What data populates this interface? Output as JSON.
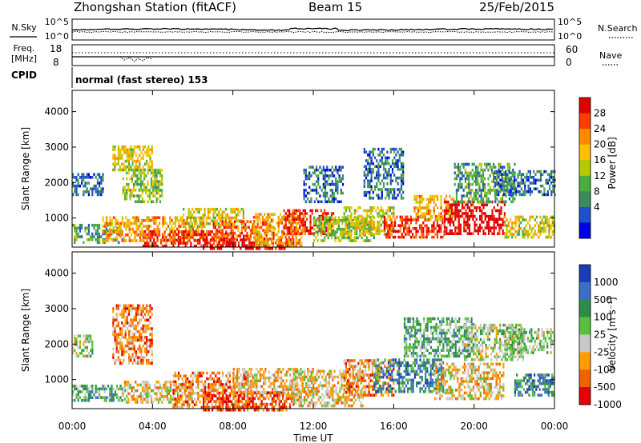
{
  "header": {
    "station": "Zhongshan Station (fitACF)",
    "beam": "Beam 15",
    "date": "25/Feb/2015"
  },
  "noise_panel": {
    "left_label": "N.Sky",
    "left_ticks": [
      "10^5",
      "10^0"
    ],
    "right_ticks": [
      "10^5",
      "10^0"
    ],
    "right_label": "N.Search"
  },
  "freq_panel": {
    "left_label_1": "Freq.",
    "left_label_2": "[MHz]",
    "left_ticks": [
      "18",
      "8"
    ],
    "right_ticks": [
      "60",
      "0"
    ],
    "right_label": "Nave"
  },
  "cpid_panel": {
    "label": "CPID",
    "mode": "normal (fast stereo) 153"
  },
  "chart_data": [
    {
      "type": "heatmap",
      "name": "power",
      "ylabel": "Slant Range [km]",
      "y_ticks": [
        "4000",
        "3000",
        "2000",
        "1000"
      ],
      "y_tick_values": [
        4000,
        3000,
        2000,
        1000
      ],
      "ylim": [
        180,
        4600
      ],
      "xlim_hours": [
        0,
        24
      ],
      "colorbar_label": "Power [dB]",
      "colorbar_ticks": [
        "28",
        "24",
        "20",
        "16",
        "12",
        "8",
        "4"
      ],
      "colorbar_colors": [
        "#e10000",
        "#ff3c00",
        "#ff8c00",
        "#ffc000",
        "#b5c800",
        "#4aae3c",
        "#3c8c5a",
        "#1e50c8",
        "#0000e6"
      ]
    },
    {
      "type": "heatmap",
      "name": "velocity",
      "ylabel": "Slant Range [km]",
      "y_ticks": [
        "4000",
        "3000",
        "2000",
        "1000"
      ],
      "y_tick_values": [
        4000,
        3000,
        2000,
        1000
      ],
      "ylim": [
        180,
        4600
      ],
      "xlim_hours": [
        0,
        24
      ],
      "colorbar_label": "Velocity [m s⁻¹]",
      "colorbar_ticks": [
        "1000",
        "500",
        "100",
        "25",
        "-25",
        "-100",
        "-500",
        "-1000"
      ],
      "colorbar_colors": [
        "#1a3cb4",
        "#3c6ec8",
        "#2e8c4a",
        "#5abf3c",
        "#c8c8c8",
        "#ff9c00",
        "#f06400",
        "#e60000"
      ]
    }
  ],
  "x_axis": {
    "ticks": [
      "00:00",
      "04:00",
      "08:00",
      "12:00",
      "16:00",
      "20:00",
      "00:00"
    ],
    "tick_hours": [
      0,
      4,
      8,
      12,
      16,
      20,
      24
    ],
    "label": "Time UT"
  },
  "bands": {
    "power": [
      {
        "t0": 0.0,
        "t1": 1.5,
        "r0": 1700,
        "r1": 2300,
        "c": 7
      },
      {
        "t0": 0.0,
        "t1": 2.5,
        "r0": 350,
        "r1": 900,
        "c": 6
      },
      {
        "t0": 2.0,
        "t1": 4.0,
        "r0": 2400,
        "r1": 3100,
        "c": 4
      },
      {
        "t0": 2.5,
        "t1": 4.5,
        "r0": 1500,
        "r1": 2400,
        "c": 5
      },
      {
        "t0": 1.5,
        "t1": 6.5,
        "r0": 400,
        "r1": 1100,
        "c": 3
      },
      {
        "t0": 3.5,
        "t1": 8.0,
        "r0": 250,
        "r1": 700,
        "c": 1
      },
      {
        "t0": 5.5,
        "t1": 8.5,
        "r0": 800,
        "r1": 1300,
        "c": 4
      },
      {
        "t0": 6.5,
        "t1": 11.0,
        "r0": 180,
        "r1": 500,
        "c": 0
      },
      {
        "t0": 7.0,
        "t1": 10.0,
        "r0": 450,
        "r1": 1000,
        "c": 2
      },
      {
        "t0": 9.0,
        "t1": 11.5,
        "r0": 250,
        "r1": 1200,
        "c": 3
      },
      {
        "t0": 10.5,
        "t1": 13.0,
        "r0": 600,
        "r1": 1300,
        "c": 1
      },
      {
        "t0": 11.5,
        "t1": 13.5,
        "r0": 1500,
        "r1": 2500,
        "c": 7
      },
      {
        "t0": 12.0,
        "t1": 15.0,
        "r0": 400,
        "r1": 1100,
        "c": 5
      },
      {
        "t0": 13.5,
        "t1": 16.0,
        "r0": 600,
        "r1": 1400,
        "c": 4
      },
      {
        "t0": 14.5,
        "t1": 16.5,
        "r0": 1600,
        "r1": 3000,
        "c": 7
      },
      {
        "t0": 15.5,
        "t1": 18.5,
        "r0": 500,
        "r1": 1100,
        "c": 1
      },
      {
        "t0": 17.0,
        "t1": 19.0,
        "r0": 1000,
        "r1": 1700,
        "c": 3
      },
      {
        "t0": 18.5,
        "t1": 21.5,
        "r0": 600,
        "r1": 1500,
        "c": 0
      },
      {
        "t0": 19.0,
        "t1": 22.0,
        "r0": 1500,
        "r1": 2600,
        "c": 6
      },
      {
        "t0": 21.0,
        "t1": 24.0,
        "r0": 1700,
        "r1": 2400,
        "c": 7
      },
      {
        "t0": 21.5,
        "t1": 24.0,
        "r0": 500,
        "r1": 1100,
        "c": 4
      }
    ],
    "velocity": [
      {
        "t0": 0.0,
        "t1": 1.0,
        "r0": 1700,
        "r1": 2300,
        "c": 4
      },
      {
        "t0": 0.0,
        "t1": 2.5,
        "r0": 450,
        "r1": 900,
        "c": 3
      },
      {
        "t0": 2.0,
        "t1": 4.0,
        "r0": 1500,
        "r1": 3200,
        "c": 6
      },
      {
        "t0": 2.5,
        "t1": 6.0,
        "r0": 400,
        "r1": 1000,
        "c": 5
      },
      {
        "t0": 5.0,
        "t1": 9.0,
        "r0": 250,
        "r1": 1300,
        "c": 6
      },
      {
        "t0": 6.5,
        "t1": 11.0,
        "r0": 180,
        "r1": 700,
        "c": 7
      },
      {
        "t0": 8.0,
        "t1": 12.0,
        "r0": 600,
        "r1": 1400,
        "c": 5
      },
      {
        "t0": 11.0,
        "t1": 14.5,
        "r0": 300,
        "r1": 1300,
        "c": 5
      },
      {
        "t0": 13.5,
        "t1": 16.0,
        "r0": 600,
        "r1": 1600,
        "c": 6
      },
      {
        "t0": 15.0,
        "t1": 18.5,
        "r0": 700,
        "r1": 1600,
        "c": 2
      },
      {
        "t0": 16.5,
        "t1": 20.0,
        "r0": 1700,
        "r1": 2800,
        "c": 3
      },
      {
        "t0": 18.0,
        "t1": 21.5,
        "r0": 500,
        "r1": 1500,
        "c": 5
      },
      {
        "t0": 19.5,
        "t1": 22.5,
        "r0": 1600,
        "r1": 2600,
        "c": 4
      },
      {
        "t0": 21.5,
        "t1": 24.0,
        "r0": 1800,
        "r1": 2500,
        "c": 4
      },
      {
        "t0": 22.0,
        "t1": 24.0,
        "r0": 600,
        "r1": 1200,
        "c": 2
      }
    ]
  }
}
